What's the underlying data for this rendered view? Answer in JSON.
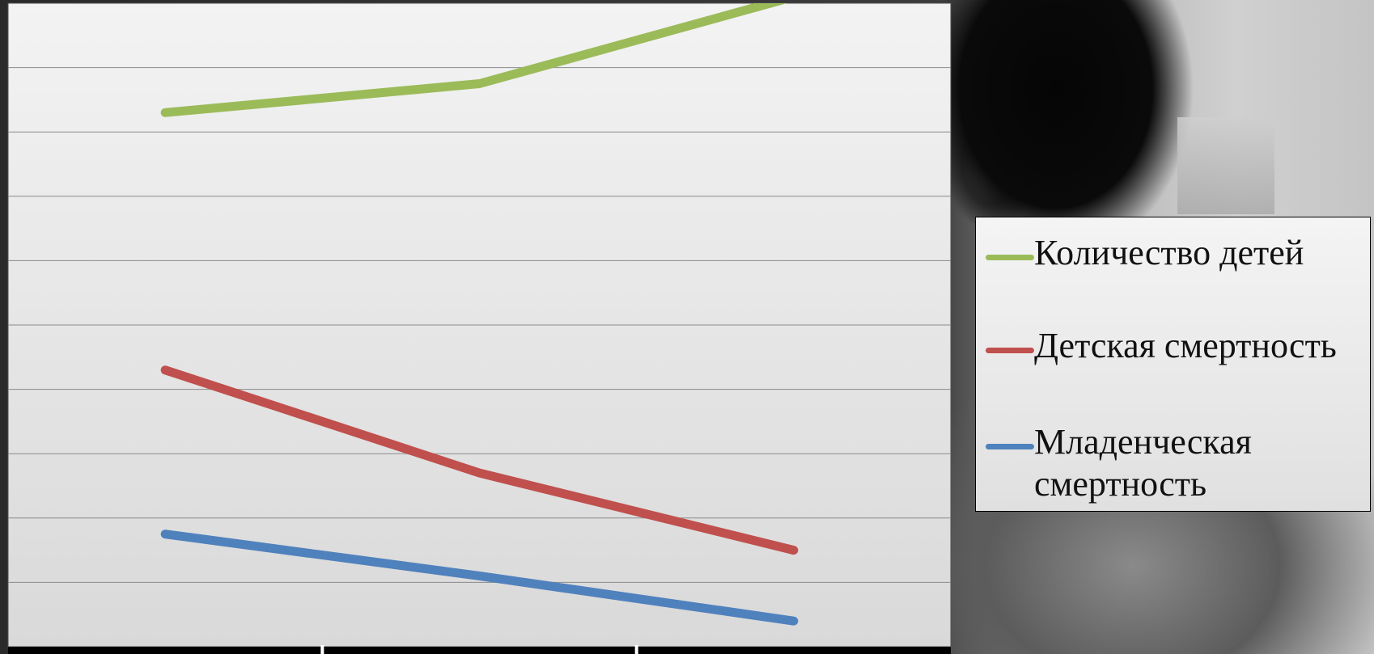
{
  "chart_data": {
    "type": "line",
    "categories": [
      "",
      "",
      ""
    ],
    "series": [
      {
        "name": "Количество детей",
        "color": "#9bbb59",
        "values": [
          8.3,
          8.75,
          10.1
        ]
      },
      {
        "name": "Детская смертность",
        "color": "#c0504d",
        "values": [
          4.3,
          2.7,
          1.5
        ]
      },
      {
        "name": "Младенческая смертность",
        "color": "#4f81bd",
        "values": [
          1.75,
          1.1,
          0.4
        ]
      }
    ],
    "ylim": [
      0,
      10
    ],
    "grid": true,
    "gridline_count": 10,
    "legend_position": "right",
    "title": "",
    "xlabel": "",
    "ylabel": ""
  }
}
